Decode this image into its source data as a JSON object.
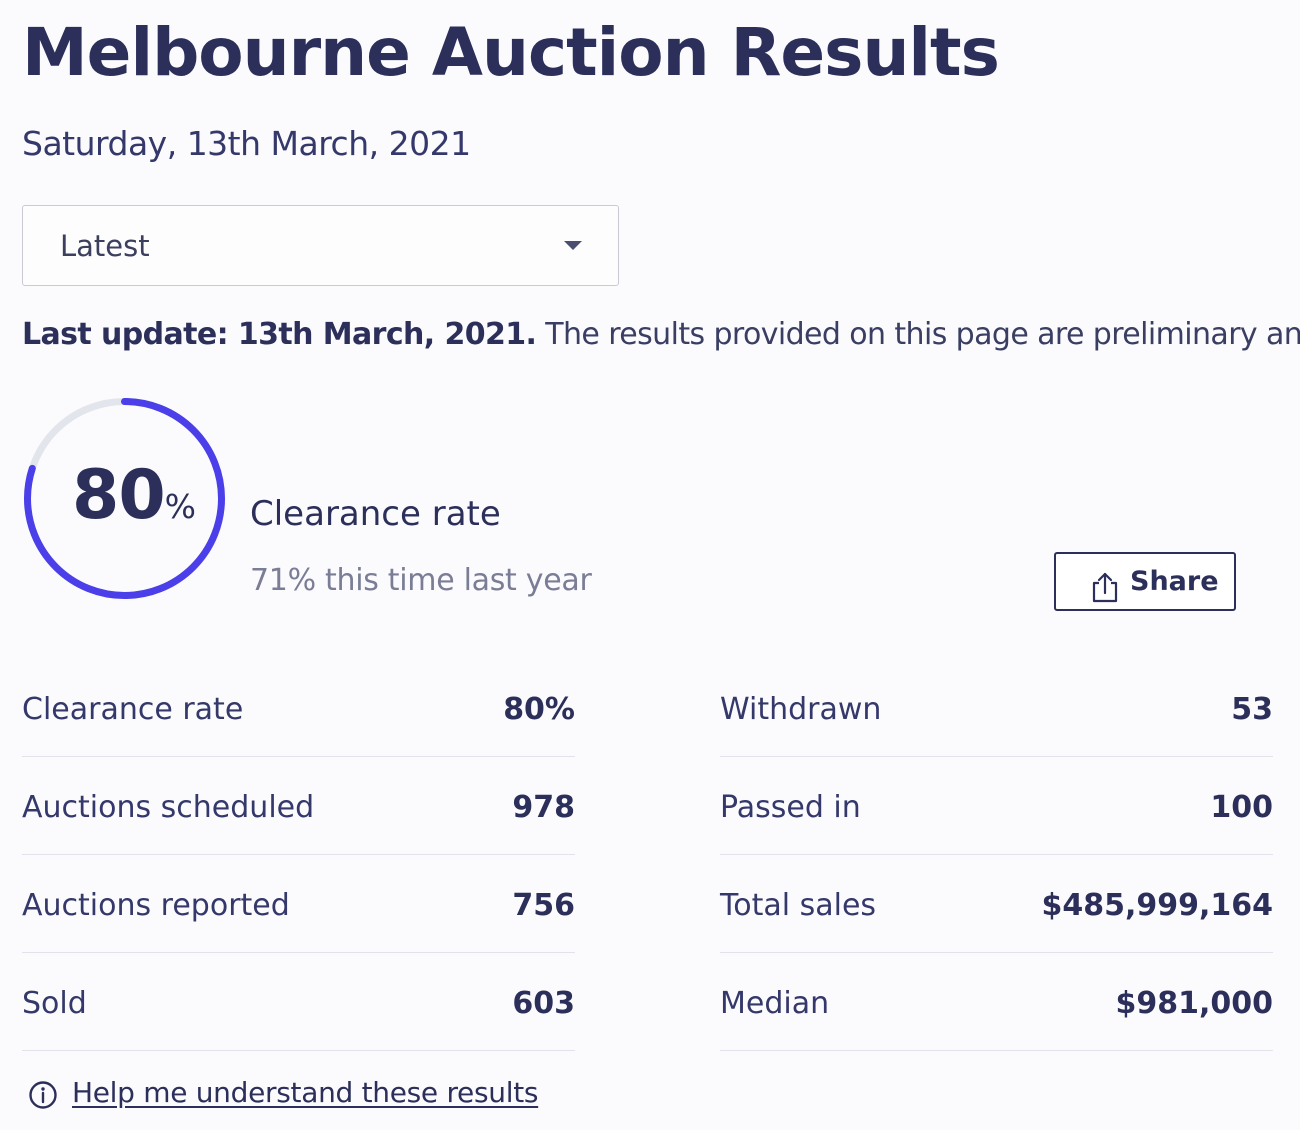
{
  "page": {
    "title": "Melbourne Auction Results",
    "date": "Saturday, 13th March, 2021"
  },
  "filter": {
    "selected": "Latest"
  },
  "update": {
    "bold_text": "Last update: 13th March, 2021.",
    "body_text": " The results provided on this page are preliminary and curre"
  },
  "clearance": {
    "rate_fraction": 0.8,
    "rate_value": "80",
    "rate_unit": "%",
    "label": "Clearance rate",
    "comparison": "71% this time last year"
  },
  "share": {
    "label": "Share"
  },
  "stats": {
    "left": [
      {
        "label": "Clearance rate",
        "value": "80%"
      },
      {
        "label": "Auctions scheduled",
        "value": "978"
      },
      {
        "label": "Auctions reported",
        "value": "756"
      },
      {
        "label": "Sold",
        "value": "603"
      }
    ],
    "right": [
      {
        "label": "Withdrawn",
        "value": "53"
      },
      {
        "label": "Passed in",
        "value": "100"
      },
      {
        "label": "Total sales",
        "value": "$485,999,164"
      },
      {
        "label": "Median",
        "value": "$981,000"
      }
    ]
  },
  "help": {
    "link_text": "Help me understand these results"
  },
  "colors": {
    "accent": "#4a3fe8",
    "track": "#e3e5ec",
    "text": "#2b2f5a"
  },
  "icons": {
    "dropdown": "chevron-down-icon",
    "share": "share-icon",
    "info": "info-icon"
  }
}
